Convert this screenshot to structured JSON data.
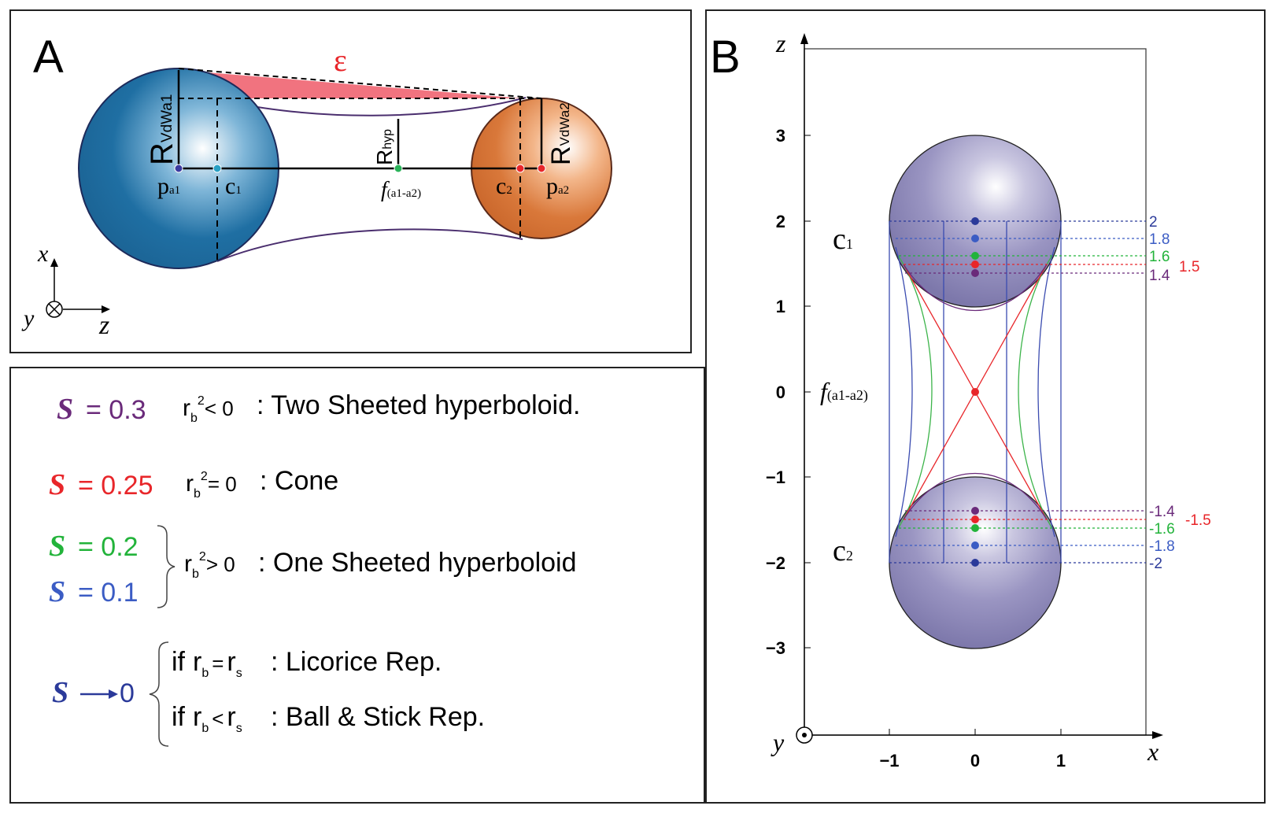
{
  "panel_a": {
    "label": "A",
    "epsilon": "ε",
    "r_vdwa1": {
      "main": "R",
      "sub": "VdWa1"
    },
    "r_vdwa2": {
      "main": "R",
      "sub": "VdWa2"
    },
    "r_hyp": {
      "main": "R",
      "sub": "hyp"
    },
    "pa1": {
      "main": "p",
      "sub": "a1"
    },
    "c1": {
      "main": "c",
      "sub": "1"
    },
    "f_label": {
      "main": "f",
      "sub": "(a1-a2)"
    },
    "c2": {
      "main": "c",
      "sub": "2"
    },
    "pa2": {
      "main": "p",
      "sub": "a2"
    },
    "axes": {
      "x": "x",
      "y": "y",
      "z": "z"
    },
    "colors": {
      "sphere1": "#1f6fa3",
      "sphere2": "#d9783a",
      "epsilon": "#e8262a",
      "hyperbola": "#4a2e6e"
    }
  },
  "panel_b": {
    "label": "B",
    "axis_x_label": "x",
    "axis_z_label": "z",
    "axis_y_label": "y",
    "z_ticks": [
      "3",
      "2",
      "1",
      "0",
      "−1",
      "−2",
      "−3"
    ],
    "x_ticks": [
      "−1",
      "0",
      "1"
    ],
    "c1": {
      "main": "c",
      "sub": "1"
    },
    "c2": {
      "main": "c",
      "sub": "2"
    },
    "f_label": {
      "main": "f",
      "sub": "(a1-a2)"
    },
    "upper_values": [
      {
        "text": "2",
        "color": "#2b3a9a"
      },
      {
        "text": "1.8",
        "color": "#3b5cc4"
      },
      {
        "text": "1.6",
        "color": "#22b33a"
      },
      {
        "text": "1.5",
        "color": "#e8262a"
      },
      {
        "text": "1.4",
        "color": "#6a2a7a"
      }
    ],
    "lower_values": [
      {
        "text": "-1.4",
        "color": "#6a2a7a"
      },
      {
        "text": "-1.5",
        "color": "#e8262a"
      },
      {
        "text": "-1.6",
        "color": "#22b33a"
      },
      {
        "text": "-1.8",
        "color": "#3b5cc4"
      },
      {
        "text": "-2",
        "color": "#2b3a9a"
      }
    ],
    "sphere_color": "#8a84b3"
  },
  "legend": {
    "rows": [
      {
        "s_label": "S",
        "s_value": "= 0.3",
        "cond_main": "r",
        "cond_sub": "b",
        "cond_sup": "2",
        "cond_rel": "< 0",
        "desc": ": Two Sheeted hyperboloid.",
        "color": "#6a2a7a"
      },
      {
        "s_label": "S",
        "s_value": "= 0.25",
        "cond_main": "r",
        "cond_sub": "b",
        "cond_sup": "2",
        "cond_rel": "= 0",
        "desc": ": Cone",
        "color": "#e8262a"
      },
      {
        "s_label": "S",
        "s_value": "= 0.2",
        "color": "#22b33a"
      },
      {
        "s_label": "S",
        "s_value": "= 0.1",
        "color": "#3b5cc4"
      }
    ],
    "one_sheet": {
      "cond_main": "r",
      "cond_sub": "b",
      "cond_sup": "2",
      "cond_rel": "> 0",
      "desc": ": One Sheeted hyperboloid"
    },
    "limit": {
      "s_label": "S",
      "arrow": "→",
      "value": "0",
      "color": "#2b3a9a"
    },
    "licorice": {
      "prefix": "if",
      "r": "r",
      "sub_b": "b",
      "rel": "=",
      "sub_s": "s",
      "desc": ": Licorice Rep."
    },
    "ballstick": {
      "prefix": "if",
      "r": "r",
      "sub_b": "b",
      "rel": "<",
      "sub_s": "s",
      "desc": ": Ball & Stick Rep."
    }
  }
}
